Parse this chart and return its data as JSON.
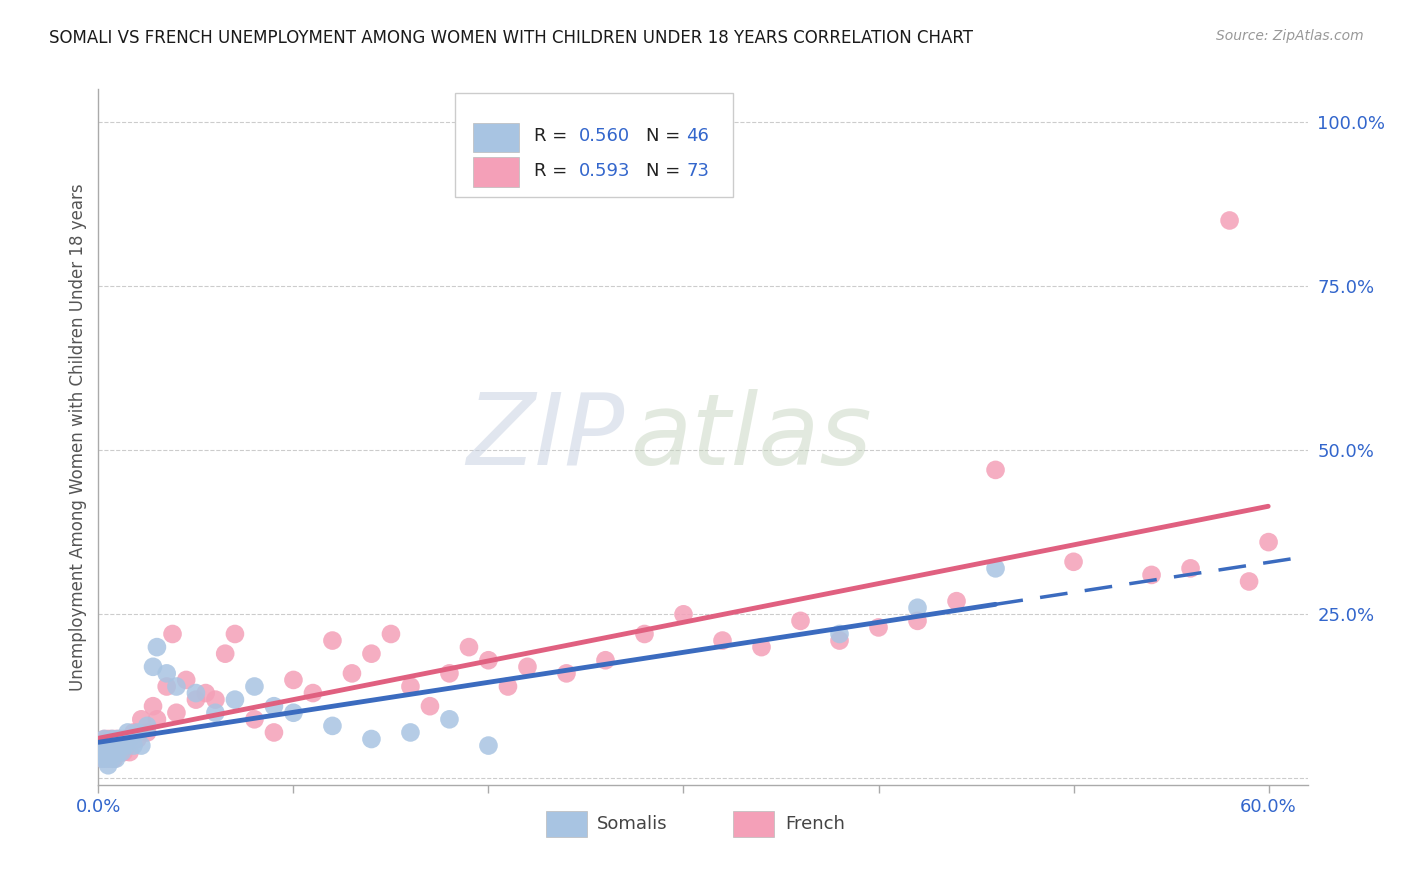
{
  "title": "SOMALI VS FRENCH UNEMPLOYMENT AMONG WOMEN WITH CHILDREN UNDER 18 YEARS CORRELATION CHART",
  "source": "Source: ZipAtlas.com",
  "ylabel": "Unemployment Among Women with Children Under 18 years",
  "xlim": [
    0.0,
    0.62
  ],
  "ylim": [
    -0.01,
    1.05
  ],
  "xtick_positions": [
    0.0,
    0.1,
    0.2,
    0.3,
    0.4,
    0.5,
    0.6
  ],
  "xticklabels": [
    "0.0%",
    "",
    "",
    "",
    "",
    "",
    "60.0%"
  ],
  "ytick_positions": [
    0.0,
    0.25,
    0.5,
    0.75,
    1.0
  ],
  "yticklabels": [
    "",
    "25.0%",
    "50.0%",
    "75.0%",
    "100.0%"
  ],
  "somali_color": "#a8c4e2",
  "french_color": "#f4a0b8",
  "somali_line_color": "#3b6bbf",
  "french_line_color": "#e06080",
  "R_somali": 0.56,
  "N_somali": 46,
  "R_french": 0.593,
  "N_french": 73,
  "watermark_zip": "ZIP",
  "watermark_atlas": "atlas",
  "bg_color": "#ffffff",
  "grid_color": "#cccccc",
  "somali_x": [
    0.001,
    0.002,
    0.002,
    0.003,
    0.003,
    0.004,
    0.004,
    0.005,
    0.005,
    0.006,
    0.006,
    0.007,
    0.007,
    0.008,
    0.008,
    0.009,
    0.01,
    0.01,
    0.011,
    0.012,
    0.013,
    0.014,
    0.015,
    0.016,
    0.018,
    0.02,
    0.022,
    0.025,
    0.028,
    0.03,
    0.035,
    0.04,
    0.05,
    0.06,
    0.07,
    0.08,
    0.09,
    0.1,
    0.12,
    0.14,
    0.16,
    0.18,
    0.2,
    0.38,
    0.42,
    0.46
  ],
  "somali_y": [
    0.04,
    0.03,
    0.05,
    0.04,
    0.06,
    0.03,
    0.05,
    0.04,
    0.02,
    0.05,
    0.04,
    0.03,
    0.06,
    0.04,
    0.05,
    0.03,
    0.04,
    0.06,
    0.05,
    0.04,
    0.06,
    0.05,
    0.07,
    0.06,
    0.05,
    0.07,
    0.05,
    0.08,
    0.17,
    0.2,
    0.16,
    0.14,
    0.13,
    0.1,
    0.12,
    0.14,
    0.11,
    0.1,
    0.08,
    0.06,
    0.07,
    0.09,
    0.05,
    0.22,
    0.26,
    0.32
  ],
  "french_x": [
    0.001,
    0.001,
    0.002,
    0.002,
    0.003,
    0.003,
    0.004,
    0.004,
    0.005,
    0.005,
    0.006,
    0.006,
    0.007,
    0.007,
    0.008,
    0.008,
    0.009,
    0.01,
    0.01,
    0.011,
    0.012,
    0.013,
    0.014,
    0.015,
    0.016,
    0.018,
    0.02,
    0.022,
    0.025,
    0.028,
    0.03,
    0.035,
    0.038,
    0.04,
    0.045,
    0.05,
    0.055,
    0.06,
    0.065,
    0.07,
    0.08,
    0.09,
    0.1,
    0.11,
    0.12,
    0.13,
    0.14,
    0.15,
    0.16,
    0.17,
    0.18,
    0.19,
    0.2,
    0.21,
    0.22,
    0.24,
    0.26,
    0.28,
    0.3,
    0.32,
    0.34,
    0.36,
    0.38,
    0.4,
    0.42,
    0.44,
    0.46,
    0.5,
    0.54,
    0.56,
    0.58,
    0.59,
    0.6
  ],
  "french_y": [
    0.05,
    0.04,
    0.05,
    0.03,
    0.06,
    0.04,
    0.05,
    0.03,
    0.06,
    0.04,
    0.05,
    0.03,
    0.06,
    0.04,
    0.05,
    0.03,
    0.06,
    0.05,
    0.04,
    0.06,
    0.05,
    0.04,
    0.06,
    0.05,
    0.04,
    0.07,
    0.06,
    0.09,
    0.07,
    0.11,
    0.09,
    0.14,
    0.22,
    0.1,
    0.15,
    0.12,
    0.13,
    0.12,
    0.19,
    0.22,
    0.09,
    0.07,
    0.15,
    0.13,
    0.21,
    0.16,
    0.19,
    0.22,
    0.14,
    0.11,
    0.16,
    0.2,
    0.18,
    0.14,
    0.17,
    0.16,
    0.18,
    0.22,
    0.25,
    0.21,
    0.2,
    0.24,
    0.21,
    0.23,
    0.24,
    0.27,
    0.47,
    0.33,
    0.31,
    0.32,
    0.85,
    0.3,
    0.36
  ],
  "somali_line_intercept": 0.02,
  "somali_line_slope": 0.6,
  "french_line_intercept": 0.0,
  "french_line_slope": 0.65
}
